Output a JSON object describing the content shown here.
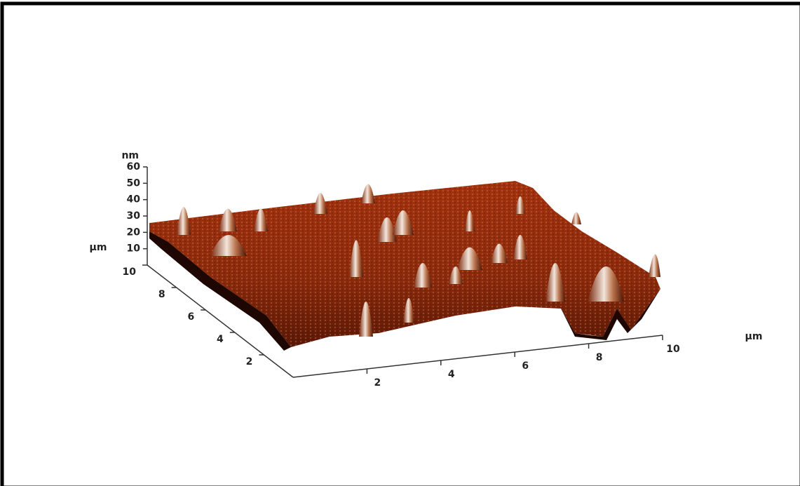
{
  "chart_data": {
    "type": "surface",
    "xlabel": "µm",
    "ylabel": "µm",
    "zlabel": "nm",
    "xlim": [
      0,
      10
    ],
    "xticks": [
      2,
      4,
      6,
      8,
      10
    ],
    "ylim": [
      0,
      10
    ],
    "yticks": [
      2,
      4,
      6,
      8,
      10
    ],
    "zlim": [
      0,
      60
    ],
    "zticks": [
      10,
      20,
      30,
      40,
      50,
      60
    ]
  }
}
